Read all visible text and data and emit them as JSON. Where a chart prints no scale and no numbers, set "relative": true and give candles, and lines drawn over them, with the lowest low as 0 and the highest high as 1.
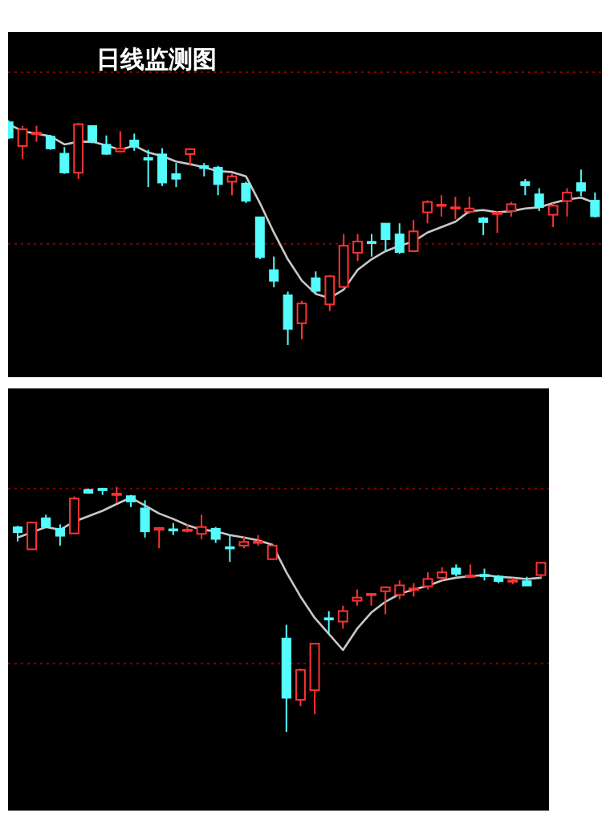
{
  "chart_data": [
    {
      "type": "candlestick",
      "title": "日线监测图",
      "relative": true,
      "categories": [
        null,
        null,
        null,
        null,
        null,
        null,
        null,
        null,
        null,
        null,
        null,
        null,
        null,
        null,
        null,
        null,
        null,
        null,
        null,
        null,
        null,
        null,
        null,
        null,
        null,
        null,
        null,
        null,
        null,
        null,
        null,
        null,
        null,
        null,
        null,
        null,
        null,
        null,
        null,
        null,
        null,
        null,
        null
      ],
      "ohlc": [
        [
          0.993,
          1.0,
          0.917,
          0.922
        ],
        [
          0.886,
          0.976,
          0.829,
          0.96
        ],
        [
          0.941,
          0.976,
          0.905,
          0.945
        ],
        [
          0.929,
          0.936,
          0.869,
          0.874
        ],
        [
          0.853,
          0.881,
          0.762,
          0.767
        ],
        [
          0.767,
          0.988,
          0.739,
          0.983
        ],
        [
          0.976,
          0.976,
          0.898,
          0.905
        ],
        [
          0.893,
          0.933,
          0.846,
          0.85
        ],
        [
          0.862,
          0.952,
          0.857,
          0.874
        ],
        [
          0.912,
          0.941,
          0.865,
          0.881
        ],
        [
          0.834,
          0.869,
          0.703,
          0.824
        ],
        [
          0.85,
          0.876,
          0.708,
          0.722
        ],
        [
          0.762,
          0.81,
          0.703,
          0.739
        ],
        [
          0.85,
          0.876,
          0.798,
          0.872
        ],
        [
          0.798,
          0.81,
          0.751,
          0.786
        ],
        [
          0.791,
          0.798,
          0.667,
          0.715
        ],
        [
          0.727,
          0.762,
          0.667,
          0.751
        ],
        [
          0.72,
          0.727,
          0.632,
          0.641
        ],
        [
          0.57,
          0.57,
          0.382,
          0.39
        ],
        [
          0.335,
          0.394,
          0.257,
          0.285
        ],
        [
          0.223,
          0.238,
          0.0,
          0.071
        ],
        [
          0.097,
          0.197,
          0.026,
          0.185
        ],
        [
          0.299,
          0.328,
          0.233,
          0.24
        ],
        [
          0.181,
          0.311,
          0.152,
          0.306
        ],
        [
          0.259,
          0.494,
          0.252,
          0.442
        ],
        [
          0.411,
          0.494,
          0.375,
          0.461
        ],
        [
          0.461,
          0.494,
          0.394,
          0.456
        ],
        [
          0.542,
          0.542,
          0.418,
          0.47
        ],
        [
          0.494,
          0.542,
          0.406,
          0.413
        ],
        [
          0.418,
          0.556,
          0.418,
          0.506
        ],
        [
          0.591,
          0.644,
          0.542,
          0.637
        ],
        [
          0.62,
          0.667,
          0.572,
          0.625
        ],
        [
          0.608,
          0.66,
          0.561,
          0.613
        ],
        [
          0.594,
          0.66,
          0.584,
          0.608
        ],
        [
          0.565,
          0.57,
          0.489,
          0.546
        ],
        [
          0.584,
          0.596,
          0.499,
          0.589
        ],
        [
          0.596,
          0.637,
          0.572,
          0.627
        ],
        [
          0.727,
          0.739,
          0.667,
          0.71
        ],
        [
          0.672,
          0.698,
          0.596,
          0.613
        ],
        [
          0.58,
          0.632,
          0.525,
          0.62
        ],
        [
          0.641,
          0.698,
          0.572,
          0.679
        ],
        [
          0.722,
          0.781,
          0.663,
          0.686
        ],
        [
          0.644,
          0.679,
          0.568,
          0.572
        ]
      ],
      "colors": [
        "#54fcfc",
        "#ff3232",
        "#ff3232",
        "#54fcfc",
        "#54fcfc",
        "#ff3232",
        "#54fcfc",
        "#54fcfc",
        "#ff3232",
        "#54fcfc",
        "#54fcfc",
        "#54fcfc",
        "#54fcfc",
        "#ff3232",
        "#54fcfc",
        "#54fcfc",
        "#ff3232",
        "#54fcfc",
        "#54fcfc",
        "#54fcfc",
        "#54fcfc",
        "#ff3232",
        "#54fcfc",
        "#ff3232",
        "#ff3232",
        "#ff3232",
        "#54fcfc",
        "#54fcfc",
        "#54fcfc",
        "#ff3232",
        "#ff3232",
        "#ff3232",
        "#ff3232",
        "#ff3232",
        "#54fcfc",
        "#ff3232",
        "#ff3232",
        "#54fcfc",
        "#54fcfc",
        "#ff3232",
        "#ff3232",
        "#54fcfc",
        "#54fcfc"
      ],
      "series": [
        {
          "type": "line",
          "color": "#c8c8c8",
          "values": [
            0.983,
            0.952,
            0.941,
            0.929,
            0.893,
            0.905,
            0.905,
            0.888,
            0.869,
            0.888,
            0.857,
            0.841,
            0.817,
            0.805,
            0.791,
            0.774,
            0.77,
            0.751,
            0.632,
            0.501,
            0.382,
            0.287,
            0.228,
            0.209,
            0.247,
            0.335,
            0.382,
            0.418,
            0.442,
            0.461,
            0.501,
            0.525,
            0.549,
            0.596,
            0.601,
            0.591,
            0.596,
            0.608,
            0.613,
            0.632,
            0.648,
            0.656,
            0.632
          ]
        }
      ],
      "ref_lines": [
        {
          "axis": "y",
          "value": 1.214,
          "color": "#8b0000",
          "line_style": "dotted"
        },
        {
          "axis": "y",
          "value": 0.451,
          "color": "#8b0000",
          "line_style": "dotted"
        }
      ]
    },
    {
      "type": "candlestick",
      "relative": true,
      "categories": [
        null,
        null,
        null,
        null,
        null,
        null,
        null,
        null,
        null,
        null,
        null,
        null,
        null,
        null,
        null,
        null,
        null,
        null,
        null,
        null,
        null,
        null,
        null,
        null,
        null,
        null,
        null,
        null,
        null,
        null,
        null,
        null,
        null,
        null,
        null,
        null,
        null,
        null
      ],
      "ohlc": [
        [
          0.836,
          0.841,
          0.777,
          0.814
        ],
        [
          0.745,
          0.858,
          0.742,
          0.854
        ],
        [
          0.873,
          0.886,
          0.832,
          0.836
        ],
        [
          0.83,
          0.847,
          0.76,
          0.799
        ],
        [
          0.81,
          0.961,
          0.808,
          0.952
        ],
        [
          0.989,
          0.993,
          0.972,
          0.974
        ],
        [
          0.993,
          0.996,
          0.967,
          0.985
        ],
        [
          0.967,
          1.0,
          0.934,
          0.972
        ],
        [
          0.963,
          0.967,
          0.917,
          0.939
        ],
        [
          0.913,
          0.945,
          0.793,
          0.817
        ],
        [
          0.825,
          0.836,
          0.749,
          0.832
        ],
        [
          0.828,
          0.852,
          0.803,
          0.823
        ],
        [
          0.821,
          0.847,
          0.814,
          0.825
        ],
        [
          0.808,
          0.886,
          0.786,
          0.836
        ],
        [
          0.83,
          0.836,
          0.771,
          0.786
        ],
        [
          0.755,
          0.803,
          0.694,
          0.749
        ],
        [
          0.76,
          0.797,
          0.749,
          0.775
        ],
        [
          0.771,
          0.803,
          0.76,
          0.777
        ],
        [
          0.705,
          0.764,
          0.701,
          0.76
        ],
        [
          0.382,
          0.437,
          0.0,
          0.138
        ],
        [
          0.131,
          0.258,
          0.105,
          0.253
        ],
        [
          0.17,
          0.362,
          0.072,
          0.36
        ],
        [
          0.465,
          0.493,
          0.4,
          0.459
        ],
        [
          0.45,
          0.515,
          0.421,
          0.493
        ],
        [
          0.535,
          0.581,
          0.515,
          0.548
        ],
        [
          0.559,
          0.563,
          0.515,
          0.563
        ],
        [
          0.574,
          0.594,
          0.48,
          0.59
        ],
        [
          0.559,
          0.618,
          0.541,
          0.598
        ],
        [
          0.581,
          0.607,
          0.552,
          0.585
        ],
        [
          0.594,
          0.651,
          0.581,
          0.624
        ],
        [
          0.629,
          0.672,
          0.618,
          0.651
        ],
        [
          0.668,
          0.683,
          0.635,
          0.644
        ],
        [
          0.633,
          0.683,
          0.629,
          0.638
        ],
        [
          0.642,
          0.666,
          0.618,
          0.635
        ],
        [
          0.635,
          0.64,
          0.607,
          0.614
        ],
        [
          0.614,
          0.629,
          0.603,
          0.618
        ],
        [
          0.616,
          0.633,
          0.596,
          0.596
        ],
        [
          0.64,
          0.694,
          0.629,
          0.69
        ]
      ],
      "colors": [
        "#54fcfc",
        "#ff3232",
        "#54fcfc",
        "#54fcfc",
        "#ff3232",
        "#54fcfc",
        "#54fcfc",
        "#ff3232",
        "#54fcfc",
        "#54fcfc",
        "#ff3232",
        "#54fcfc",
        "#ff3232",
        "#ff3232",
        "#54fcfc",
        "#54fcfc",
        "#ff3232",
        "#ff3232",
        "#ff3232",
        "#54fcfc",
        "#ff3232",
        "#ff3232",
        "#54fcfc",
        "#ff3232",
        "#ff3232",
        "#ff3232",
        "#ff3232",
        "#ff3232",
        "#ff3232",
        "#ff3232",
        "#ff3232",
        "#54fcfc",
        "#ff3232",
        "#54fcfc",
        "#54fcfc",
        "#ff3232",
        "#54fcfc",
        "#ff3232"
      ],
      "series": [
        {
          "type": "line",
          "color": "#c8c8c8",
          "values": [
            0.793,
            0.814,
            0.836,
            0.825,
            0.858,
            0.88,
            0.902,
            0.93,
            0.956,
            0.924,
            0.891,
            0.869,
            0.843,
            0.825,
            0.819,
            0.803,
            0.793,
            0.782,
            0.764,
            0.651,
            0.552,
            0.465,
            0.4,
            0.334,
            0.421,
            0.487,
            0.531,
            0.563,
            0.581,
            0.596,
            0.618,
            0.629,
            0.635,
            0.64,
            0.633,
            0.629,
            0.624,
            0.629
          ]
        }
      ],
      "ref_lines": [
        {
          "axis": "y",
          "value": 0.993,
          "color": "#8b0000",
          "line_style": "dotted"
        },
        {
          "axis": "y",
          "value": 0.279,
          "color": "#8b0000",
          "line_style": "dotted"
        }
      ]
    }
  ]
}
